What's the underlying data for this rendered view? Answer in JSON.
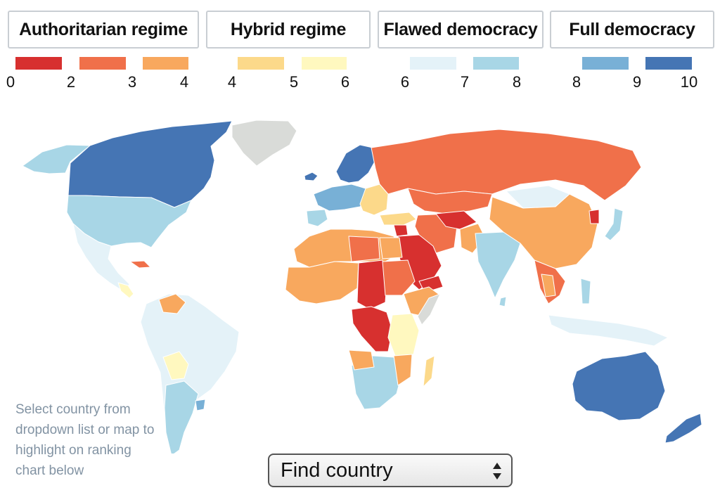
{
  "legend": {
    "categories": [
      {
        "id": "authoritarian",
        "label": "Authoritarian regime"
      },
      {
        "id": "hybrid",
        "label": "Hybrid regime"
      },
      {
        "id": "flawed",
        "label": "Flawed democracy"
      },
      {
        "id": "full",
        "label": "Full democracy"
      }
    ],
    "swatches": [
      {
        "range": "0-2",
        "color": "#d7302f"
      },
      {
        "range": "2-3",
        "color": "#f0704a"
      },
      {
        "range": "3-4",
        "color": "#f8a85e"
      },
      {
        "range": "4-5",
        "color": "#fcd98a"
      },
      {
        "range": "5-6",
        "color": "#fff8bf"
      },
      {
        "range": "6-7",
        "color": "#e4f2f8"
      },
      {
        "range": "7-8",
        "color": "#a8d6e6"
      },
      {
        "range": "8-9",
        "color": "#78b0d6"
      },
      {
        "range": "9-10",
        "color": "#4575b4"
      }
    ],
    "ticks": [
      "0",
      "2",
      "3",
      "4",
      "4",
      "5",
      "6",
      "6",
      "7",
      "8",
      "8",
      "9",
      "10"
    ]
  },
  "colors": {
    "no_data": "#d9dbd8",
    "border": "#ffffff",
    "hint_text": "#8293a3"
  },
  "hint": "Select country from dropdown list or map to highlight on ranking chart below",
  "dropdown": {
    "label": "Find country",
    "icon": "up-down-arrows-icon"
  }
}
